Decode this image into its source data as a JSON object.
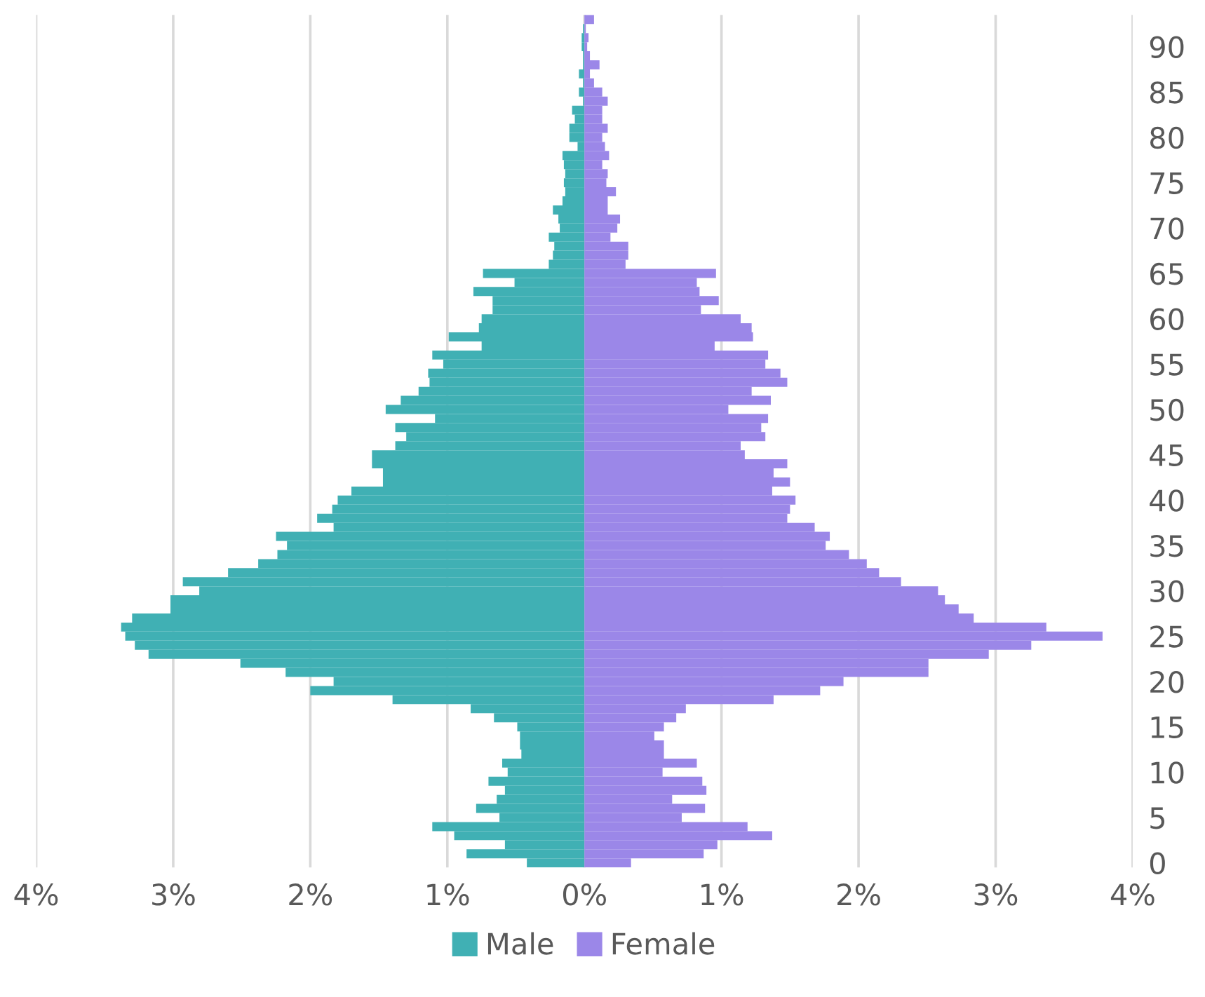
{
  "chart_data": {
    "type": "bar",
    "orientation": "horizontal",
    "stacked": true,
    "categories": [
      null,
      null,
      null,
      "90",
      null,
      null,
      null,
      null,
      "85",
      null,
      null,
      null,
      null,
      "80",
      null,
      null,
      null,
      null,
      "75",
      null,
      null,
      null,
      null,
      "70",
      null,
      null,
      null,
      null,
      "65",
      null,
      null,
      null,
      null,
      "60",
      null,
      null,
      null,
      null,
      "55",
      null,
      null,
      null,
      null,
      "50",
      null,
      null,
      null,
      null,
      "45",
      null,
      null,
      null,
      null,
      "40",
      null,
      null,
      null,
      null,
      "35",
      null,
      null,
      null,
      null,
      "30",
      null,
      null,
      null,
      null,
      "25",
      null,
      null,
      null,
      null,
      "20",
      null,
      null,
      null,
      null,
      "15",
      null,
      null,
      null,
      null,
      "10",
      null,
      null,
      null,
      null,
      "5",
      null,
      null,
      null,
      null,
      "0"
    ],
    "series": [
      {
        "name": "Male",
        "color": "#40b0b4",
        "values": [
          0,
          -0.01,
          -0.02,
          -0.02,
          -0.01,
          -0.01,
          -0.04,
          -0.01,
          -0.04,
          -0.01,
          -0.09,
          -0.07,
          -0.11,
          -0.11,
          -0.05,
          -0.16,
          -0.15,
          -0.14,
          -0.15,
          -0.14,
          -0.16,
          -0.23,
          -0.19,
          -0.18,
          -0.26,
          -0.22,
          -0.23,
          -0.26,
          -0.74,
          -0.51,
          -0.81,
          -0.67,
          -0.67,
          -0.75,
          -0.77,
          -0.99,
          -0.75,
          -1.11,
          -1.03,
          -1.14,
          -1.13,
          -1.21,
          -1.34,
          -1.45,
          -1.09,
          -1.38,
          -1.3,
          -1.38,
          -1.55,
          -1.55,
          -1.47,
          -1.47,
          -1.7,
          -1.8,
          -1.84,
          -1.95,
          -1.83,
          -2.25,
          -2.17,
          -2.24,
          -2.38,
          -2.6,
          -2.93,
          -2.81,
          -3.02,
          -3.02,
          -3.3,
          -3.38,
          -3.35,
          -3.28,
          -3.18,
          -2.51,
          -2.18,
          -1.83,
          -2.0,
          -1.4,
          -0.83,
          -0.66,
          -0.49,
          -0.47,
          -0.47,
          -0.46,
          -0.6,
          -0.56,
          -0.7,
          -0.58,
          -0.64,
          -0.79,
          -0.62,
          -1.11,
          -0.95,
          -0.58,
          -0.86,
          -0.42
        ]
      },
      {
        "name": "Female",
        "color": "#9b87e8",
        "values": [
          0.07,
          0.01,
          0.03,
          0.02,
          0.04,
          0.11,
          0.04,
          0.07,
          0.13,
          0.17,
          0.13,
          0.13,
          0.17,
          0.13,
          0.15,
          0.18,
          0.13,
          0.17,
          0.16,
          0.23,
          0.17,
          0.17,
          0.26,
          0.24,
          0.19,
          0.32,
          0.32,
          0.3,
          0.96,
          0.82,
          0.84,
          0.98,
          0.85,
          1.14,
          1.22,
          1.23,
          0.95,
          1.34,
          1.32,
          1.43,
          1.48,
          1.22,
          1.36,
          1.05,
          1.34,
          1.29,
          1.32,
          1.14,
          1.17,
          1.48,
          1.38,
          1.5,
          1.37,
          1.54,
          1.5,
          1.48,
          1.68,
          1.79,
          1.76,
          1.93,
          2.06,
          2.15,
          2.31,
          2.58,
          2.63,
          2.73,
          2.84,
          3.37,
          3.78,
          3.26,
          2.95,
          2.51,
          2.51,
          1.89,
          1.72,
          1.38,
          0.74,
          0.67,
          0.58,
          0.51,
          0.58,
          0.58,
          0.82,
          0.57,
          0.86,
          0.89,
          0.64,
          0.88,
          0.71,
          1.19,
          1.37,
          0.97,
          0.87,
          0.34
        ]
      }
    ],
    "xlim": [
      -4,
      4
    ],
    "xticks": [
      {
        "value": -4,
        "label": "4%"
      },
      {
        "value": -3,
        "label": "3%"
      },
      {
        "value": -2,
        "label": "2%"
      },
      {
        "value": -1,
        "label": "1%"
      },
      {
        "value": 0,
        "label": "0%"
      },
      {
        "value": 1,
        "label": "1%"
      },
      {
        "value": 2,
        "label": "2%"
      },
      {
        "value": 3,
        "label": "3%"
      },
      {
        "value": 4,
        "label": "4%"
      }
    ],
    "grid": "x",
    "legend": "bottom"
  }
}
